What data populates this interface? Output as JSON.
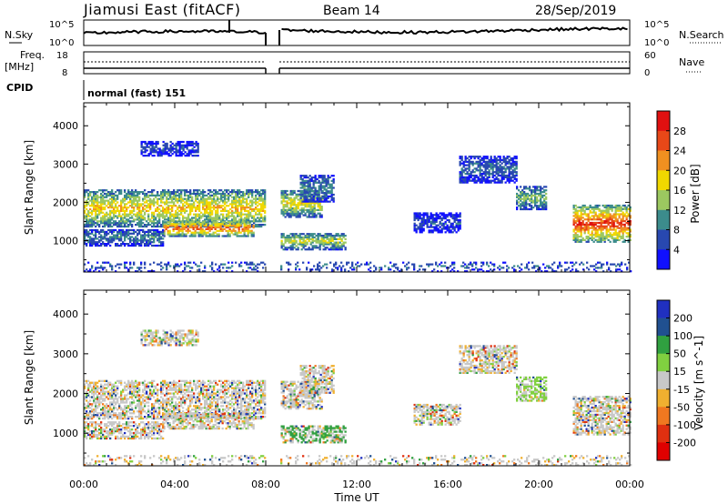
{
  "header": {
    "title": "Jiamusi East (fitACF)",
    "beam": "Beam 14",
    "date": "28/Sep/2019"
  },
  "params": {
    "nsky_label": "N.Sky",
    "nsearch_label": "N.Search",
    "noise_ticks": [
      "10^5",
      "10^0"
    ],
    "freq_label": "Freq.",
    "freq_unit": "[MHz]",
    "freq_ticks": [
      "18",
      "8"
    ],
    "nave_label": "Nave",
    "nave_ticks": [
      "60",
      "0"
    ],
    "cpid_label": "CPID",
    "cpid_value": "normal (fast) 151"
  },
  "chart_data": [
    {
      "type": "heatmap",
      "name": "power",
      "ylabel": "Slant Range [km]",
      "ylim": [
        180,
        4600
      ],
      "yticks": [
        1000,
        2000,
        3000,
        4000
      ],
      "xlim": [
        0,
        24
      ],
      "colorbar_label": "Power [dB]",
      "colorbar_ticks": [
        4,
        8,
        12,
        16,
        20,
        24,
        28
      ],
      "colorbar_range": [
        0,
        32
      ],
      "colorbar_colors": [
        "#1010ff",
        "#2848b0",
        "#3c8c8c",
        "#9cc860",
        "#f0d800",
        "#f09020",
        "#e84818",
        "#e01010"
      ],
      "regions": [
        {
          "t": [
            0.0,
            8.0
          ],
          "r": [
            1350,
            2300
          ],
          "peak": 20
        },
        {
          "t": [
            3.5,
            7.5
          ],
          "r": [
            1100,
            1500
          ],
          "peak": 26
        },
        {
          "t": [
            0.0,
            3.5
          ],
          "r": [
            850,
            1300
          ],
          "peak": 10
        },
        {
          "t": [
            8.5,
            10.5
          ],
          "r": [
            1600,
            2300
          ],
          "peak": 18
        },
        {
          "t": [
            8.5,
            11.5
          ],
          "r": [
            750,
            1200
          ],
          "peak": 16
        },
        {
          "t": [
            9.5,
            11.0
          ],
          "r": [
            2000,
            2700
          ],
          "peak": 10
        },
        {
          "t": [
            2.5,
            5.0
          ],
          "r": [
            3200,
            3600
          ],
          "peak": 6
        },
        {
          "t": [
            16.5,
            19.0
          ],
          "r": [
            2500,
            3200
          ],
          "peak": 8
        },
        {
          "t": [
            19.0,
            20.3
          ],
          "r": [
            1800,
            2400
          ],
          "peak": 14
        },
        {
          "t": [
            21.5,
            24.0
          ],
          "r": [
            950,
            1900
          ],
          "peak": 28
        },
        {
          "t": [
            14.5,
            16.5
          ],
          "r": [
            1200,
            1700
          ],
          "peak": 6
        },
        {
          "t": [
            0.0,
            24.0
          ],
          "r": [
            180,
            450
          ],
          "peak": 8
        }
      ]
    },
    {
      "type": "heatmap",
      "name": "velocity",
      "ylabel": "Slant Range [km]",
      "ylim": [
        180,
        4600
      ],
      "yticks": [
        1000,
        2000,
        3000,
        4000
      ],
      "xlim": [
        0,
        24
      ],
      "xticks": [
        "00:00",
        "04:00",
        "08:00",
        "12:00",
        "16:00",
        "20:00",
        "00:00"
      ],
      "xlabel": "Time UT",
      "colorbar_label": "Velocity [m s^-1]",
      "colorbar_ticks": [
        "200",
        "100",
        "50",
        "15",
        "-15",
        "-50",
        "-100",
        "-200"
      ],
      "colorbar_colors": [
        "#2030c0",
        "#205090",
        "#30a040",
        "#80d040",
        "#c8c8c8",
        "#f0b030",
        "#f07820",
        "#e03010",
        "#e00000"
      ]
    }
  ]
}
